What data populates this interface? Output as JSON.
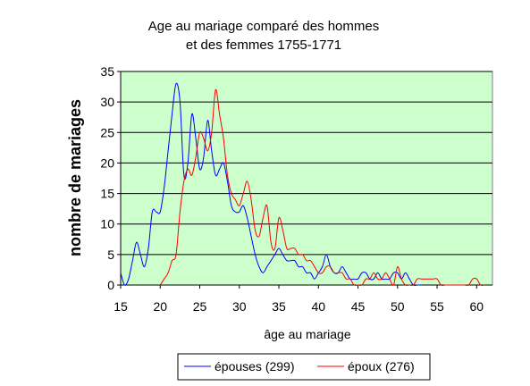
{
  "chart_data": {
    "type": "line",
    "title_lines": [
      "Age au mariage comparé des hommes",
      "et des femmes 1755-1771"
    ],
    "xlabel": "âge au mariage",
    "ylabel": "nombre de mariages",
    "xlim": [
      15,
      62
    ],
    "ylim": [
      0,
      35
    ],
    "xticks": [
      15,
      20,
      25,
      30,
      35,
      40,
      45,
      50,
      55,
      60
    ],
    "yticks": [
      0,
      5,
      10,
      15,
      20,
      25,
      30,
      35
    ],
    "grid": "horizontal",
    "legend_position": "bottom",
    "plot_background": "#ccffcc",
    "series": [
      {
        "name": "épouses (299)",
        "color": "#0000ff",
        "x": [
          15,
          15.5,
          16,
          16.5,
          17,
          17.5,
          18,
          18.5,
          19,
          19.5,
          20,
          20.5,
          21,
          21.5,
          22,
          22.5,
          23,
          23.5,
          24,
          24.5,
          25,
          25.5,
          26,
          26.5,
          27,
          27.5,
          28,
          28.5,
          29,
          29.5,
          30,
          30.5,
          31,
          31.5,
          32,
          32.5,
          33,
          33.5,
          34,
          34.5,
          35,
          35.5,
          36,
          36.5,
          37,
          37.5,
          38,
          38.5,
          39,
          39.5,
          40,
          40.5,
          41,
          41.5,
          42,
          42.5,
          43,
          43.5,
          44,
          44.5,
          45,
          45.5,
          46,
          46.5,
          47,
          47.5,
          48,
          48.5,
          49,
          49.5,
          50,
          50.5,
          51,
          51.5,
          52,
          52.5,
          53
        ],
        "values": [
          2,
          0,
          1,
          4,
          7,
          5,
          3,
          6,
          12,
          12,
          12,
          16,
          22,
          28,
          33,
          30,
          18,
          20,
          28,
          24,
          19,
          21,
          27,
          22,
          18,
          19,
          20,
          17,
          13,
          12,
          12,
          13,
          11,
          8,
          5,
          3,
          2,
          3,
          4,
          5,
          6,
          5,
          4,
          4,
          4,
          3,
          3,
          2,
          2,
          1,
          2,
          3,
          5,
          3,
          2,
          2,
          3,
          2,
          1,
          1,
          1,
          2,
          2,
          1,
          1,
          2,
          1,
          1,
          1,
          2,
          2,
          1,
          2,
          1,
          0,
          0,
          0
        ]
      },
      {
        "name": "époux (276)",
        "color": "#ff0000",
        "x": [
          20,
          20.5,
          21,
          21.5,
          22,
          22.5,
          23,
          23.5,
          24,
          24.5,
          25,
          25.5,
          26,
          26.5,
          27,
          27.5,
          28,
          28.5,
          29,
          29.5,
          30,
          30.5,
          31,
          31.5,
          32,
          32.5,
          33,
          33.5,
          34,
          34.5,
          35,
          35.5,
          36,
          36.5,
          37,
          37.5,
          38,
          38.5,
          39,
          39.5,
          40,
          40.5,
          41,
          41.5,
          42,
          42.5,
          43,
          43.5,
          44,
          44.5,
          45,
          45.5,
          46,
          46.5,
          47,
          47.5,
          48,
          48.5,
          49,
          49.5,
          50,
          50.5,
          51,
          51.5,
          52,
          52.5,
          53,
          53.5,
          54,
          54.5,
          55,
          55.5,
          56,
          56.5,
          57,
          57.5,
          58,
          58.5,
          59,
          59.5,
          60,
          60.5,
          61
        ],
        "values": [
          0,
          1,
          2,
          4,
          5,
          12,
          17,
          19,
          18,
          21,
          25,
          24,
          22,
          25,
          32,
          28,
          24,
          18,
          15,
          14,
          13,
          15,
          17,
          14,
          9,
          8,
          11,
          13,
          7,
          6,
          11,
          9,
          6,
          6,
          6,
          5,
          5,
          4,
          4,
          3,
          2,
          2,
          3,
          3,
          2,
          2,
          2,
          1,
          1,
          0,
          0,
          0,
          1,
          1,
          2,
          1,
          1,
          2,
          1,
          0,
          3,
          1,
          0,
          0,
          0,
          1,
          1,
          1,
          1,
          1,
          1,
          0,
          0,
          0,
          0,
          0,
          0,
          0,
          0,
          1,
          1,
          0,
          0
        ]
      }
    ]
  }
}
